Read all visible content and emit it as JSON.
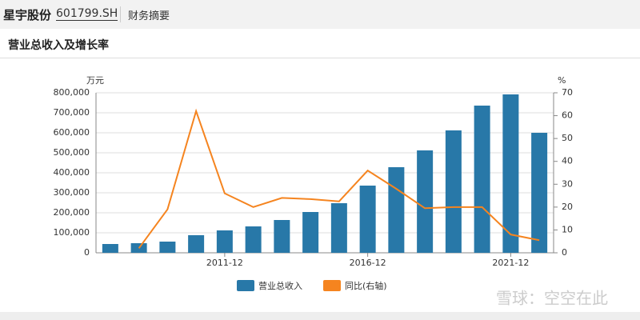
{
  "header": {
    "name": "星宇股份",
    "code": "601799.SH",
    "tab": "财务摘要"
  },
  "section_title": "营业总收入及增长率",
  "watermark": "雪球：空空在此",
  "chart_data": {
    "type": "bar",
    "y_unit": "万元",
    "y2_unit": "%",
    "categories": [
      null,
      null,
      null,
      null,
      "2011-12",
      null,
      null,
      null,
      null,
      "2016-12",
      null,
      null,
      null,
      null,
      "2021-12",
      null
    ],
    "series": [
      {
        "name": "营业总收入",
        "type": "bar",
        "color": "#2878a8",
        "values": [
          44000,
          48000,
          56000,
          88000,
          112000,
          132000,
          164000,
          204000,
          248000,
          336000,
          428000,
          512000,
          612000,
          736000,
          792000,
          600000
        ]
      },
      {
        "name": "同比(右轴)",
        "type": "line",
        "axis": "y2",
        "color": "#f5841f",
        "values": [
          null,
          2,
          19,
          62,
          26,
          20,
          24,
          23.5,
          22.5,
          36,
          28,
          19.5,
          20,
          20,
          8,
          5.5
        ]
      }
    ],
    "ylim": [
      0,
      800000
    ],
    "yticks": [
      0,
      {
        "value": 100000,
        "label": "100,000"
      },
      {
        "value": 200000,
        "label": "200,000"
      },
      {
        "value": 300000,
        "label": "300,000"
      },
      {
        "value": 400000,
        "label": "400,000"
      },
      {
        "value": 500000,
        "label": "500,000"
      },
      {
        "value": 600000,
        "label": "600,000"
      },
      {
        "value": 700000,
        "label": "700,000"
      },
      {
        "value": 800000,
        "label": "800,000"
      }
    ],
    "y2lim": [
      0,
      70
    ],
    "y2ticks": [
      0,
      10,
      20,
      30,
      40,
      50,
      60,
      70
    ],
    "grid": true
  }
}
